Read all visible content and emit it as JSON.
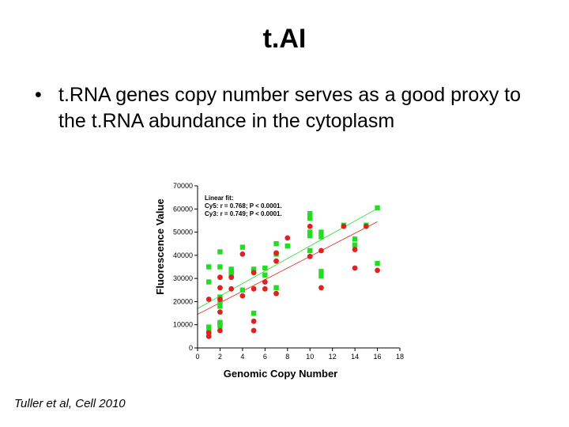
{
  "slide": {
    "title": "t.AI",
    "bullet": "t.RNA genes copy number serves as a good proxy to the t.RNA abundance in the cytoplasm",
    "bullet_symbol": "•",
    "citation": "Tuller et al, Cell 2010"
  },
  "colors": {
    "cy5": "#22dd22",
    "cy3": "#dd2222"
  },
  "chart_data": {
    "type": "scatter",
    "title": "",
    "xlabel": "Genomic Copy Number",
    "ylabel": "Fluorescence Value",
    "xlim": [
      0,
      18
    ],
    "ylim": [
      0,
      70000
    ],
    "xticks": [
      0,
      2,
      4,
      6,
      8,
      10,
      12,
      14,
      16,
      18
    ],
    "yticks": [
      0,
      10000,
      20000,
      30000,
      40000,
      50000,
      60000,
      70000
    ],
    "grid": false,
    "annotation": {
      "title": "Linear fit:",
      "lines": [
        "Cy5: r = 0.768; P < 0.0001.",
        "Cy3: r = 0.749; P < 0.0001."
      ]
    },
    "series": [
      {
        "marker": "square",
        "x": [
          1,
          1,
          1,
          1,
          2,
          2,
          2,
          2,
          2,
          2,
          2,
          2,
          3,
          3,
          3,
          4,
          4,
          5,
          5,
          6,
          6,
          7,
          7,
          7,
          8,
          10,
          10,
          10,
          10,
          10,
          11,
          11,
          11,
          11,
          13,
          14,
          14,
          15,
          16,
          16
        ],
        "y": [
          8000,
          9000,
          28500,
          35000,
          41500,
          35000,
          22000,
          20000,
          18000,
          11000,
          9500,
          10500,
          34000,
          33000,
          32000,
          43500,
          25000,
          34000,
          15000,
          34500,
          31500,
          45000,
          40500,
          26000,
          44000,
          58000,
          56000,
          50000,
          48500,
          42000,
          50000,
          48000,
          33000,
          31000,
          53000,
          47000,
          44500,
          53000,
          60500,
          36500
        ]
      },
      {
        "marker": "circle",
        "x": [
          1,
          1,
          1,
          2,
          2,
          2,
          2,
          2,
          3,
          3,
          4,
          4,
          5,
          5,
          5,
          5,
          6,
          6,
          7,
          7,
          7,
          8,
          10,
          10,
          11,
          11,
          13,
          14,
          14,
          15,
          16
        ],
        "y": [
          5000,
          6500,
          21000,
          30500,
          26000,
          21000,
          15500,
          7500,
          30500,
          25500,
          40500,
          22500,
          32500,
          25500,
          11500,
          7500,
          28500,
          25500,
          37500,
          41000,
          23500,
          47500,
          52500,
          39500,
          42000,
          26000,
          52500,
          42500,
          34500,
          52500,
          33500
        ]
      }
    ],
    "fits": [
      {
        "slope": 2700,
        "intercept": 17000
      },
      {
        "slope": 2500,
        "intercept": 14500
      }
    ]
  }
}
